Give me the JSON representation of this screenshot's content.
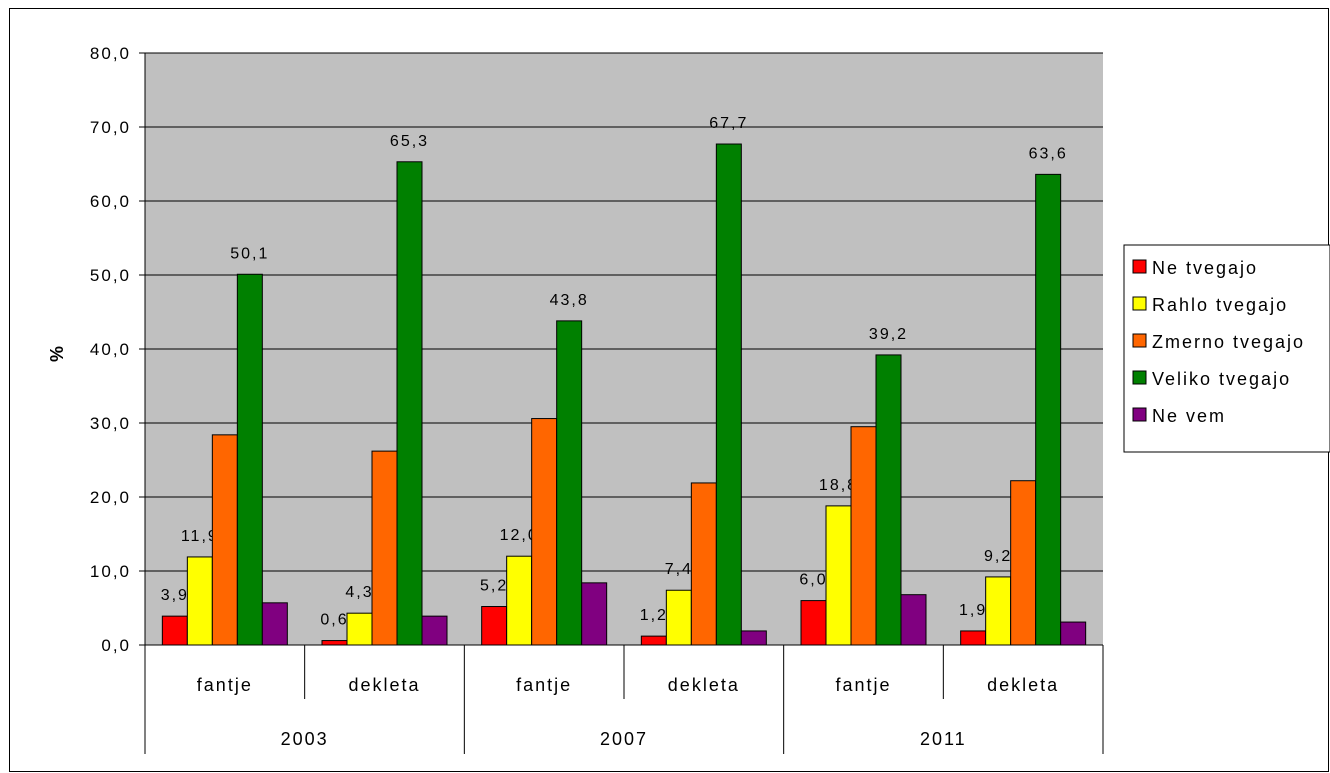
{
  "chart_data": {
    "type": "bar",
    "title": "",
    "ylabel": "%",
    "xlabel": "",
    "ylim": [
      0,
      80
    ],
    "yticks": [
      "0,0",
      "10,0",
      "20,0",
      "30,0",
      "40,0",
      "50,0",
      "60,0",
      "70,0",
      "80,0"
    ],
    "grid": true,
    "legend_position": "right",
    "groups": [
      {
        "year": "2003",
        "categories": [
          "fantje",
          "dekleta"
        ]
      },
      {
        "year": "2007",
        "categories": [
          "fantje",
          "dekleta"
        ]
      },
      {
        "year": "2011",
        "categories": [
          "fantje",
          "dekleta"
        ]
      }
    ],
    "categories": [
      "fantje",
      "dekleta",
      "fantje",
      "dekleta",
      "fantje",
      "dekleta"
    ],
    "series": [
      {
        "name": "Ne tvegajo",
        "color": "#ff0000",
        "values": [
          3.9,
          0.6,
          5.2,
          1.2,
          6.0,
          1.9
        ],
        "labels": [
          "3,9",
          "0,6",
          "5,2",
          "1,2",
          "6,0",
          "1,9"
        ]
      },
      {
        "name": "Rahlo tvegajo",
        "color": "#ffff00",
        "values": [
          11.9,
          4.3,
          12.0,
          7.4,
          18.8,
          9.2
        ],
        "labels": [
          "11,9",
          "4,3",
          "12,0",
          "7,4",
          "18,8",
          "9,2"
        ]
      },
      {
        "name": "Zmerno tvegajo",
        "color": "#ff6600",
        "values": [
          28.4,
          26.2,
          30.6,
          21.9,
          29.5,
          22.2
        ],
        "labels": null
      },
      {
        "name": "Veliko tvegajo",
        "color": "#008000",
        "values": [
          50.1,
          65.3,
          43.8,
          67.7,
          39.2,
          63.6
        ],
        "labels": [
          "50,1",
          "65,3",
          "43,8",
          "67,7",
          "39,2",
          "63,6"
        ]
      },
      {
        "name": "Ne vem",
        "color": "#800080",
        "values": [
          5.7,
          3.9,
          8.4,
          1.9,
          6.8,
          3.1
        ],
        "labels": null
      }
    ],
    "colors": {
      "plot_background": "#c0c0c0",
      "grid": "#000000"
    }
  }
}
